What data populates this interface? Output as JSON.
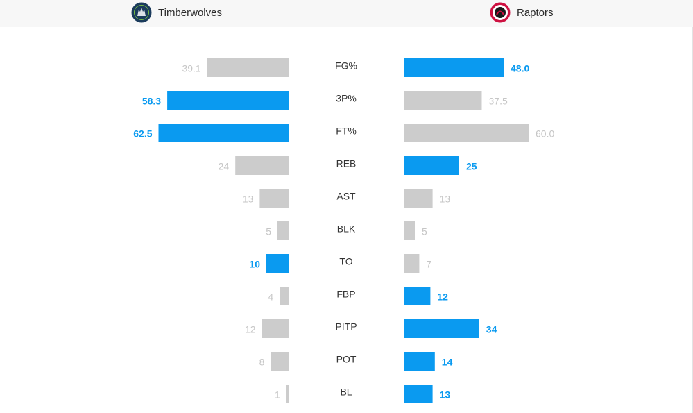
{
  "teams": {
    "away": {
      "name": "Timberwolves",
      "logo_icon": "timberwolves-logo-icon",
      "logo_color": "#1b3b5c"
    },
    "home": {
      "name": "Raptors",
      "logo_icon": "raptors-logo-icon",
      "logo_color": "#ce1141"
    }
  },
  "colors": {
    "leader": "#0a9af0",
    "other": "#cccccc",
    "other_text": "#c6c6c6",
    "stat_label": "#333333"
  },
  "chart_data": {
    "type": "bar",
    "orientation": "horizontal-diverging",
    "categories": [
      "FG%",
      "3P%",
      "FT%",
      "REB",
      "AST",
      "BLK",
      "TO",
      "FBP",
      "PITP",
      "POT",
      "BL"
    ],
    "series": [
      {
        "name": "Timberwolves",
        "values": [
          39.1,
          58.3,
          62.5,
          24,
          13,
          5,
          10,
          4,
          12,
          8,
          1
        ],
        "labels": [
          "39.1",
          "58.3",
          "62.5",
          "24",
          "13",
          "5",
          "10",
          "4",
          "12",
          "8",
          "1"
        ],
        "leader": [
          false,
          true,
          true,
          false,
          false,
          false,
          true,
          false,
          false,
          false,
          false
        ]
      },
      {
        "name": "Raptors",
        "values": [
          48.0,
          37.5,
          60.0,
          25,
          13,
          5,
          7,
          12,
          34,
          14,
          13
        ],
        "labels": [
          "48.0",
          "37.5",
          "60.0",
          "25",
          "13",
          "5",
          "7",
          "12",
          "34",
          "14",
          "13"
        ],
        "leader": [
          true,
          false,
          false,
          true,
          false,
          false,
          false,
          true,
          true,
          true,
          true
        ]
      }
    ]
  }
}
